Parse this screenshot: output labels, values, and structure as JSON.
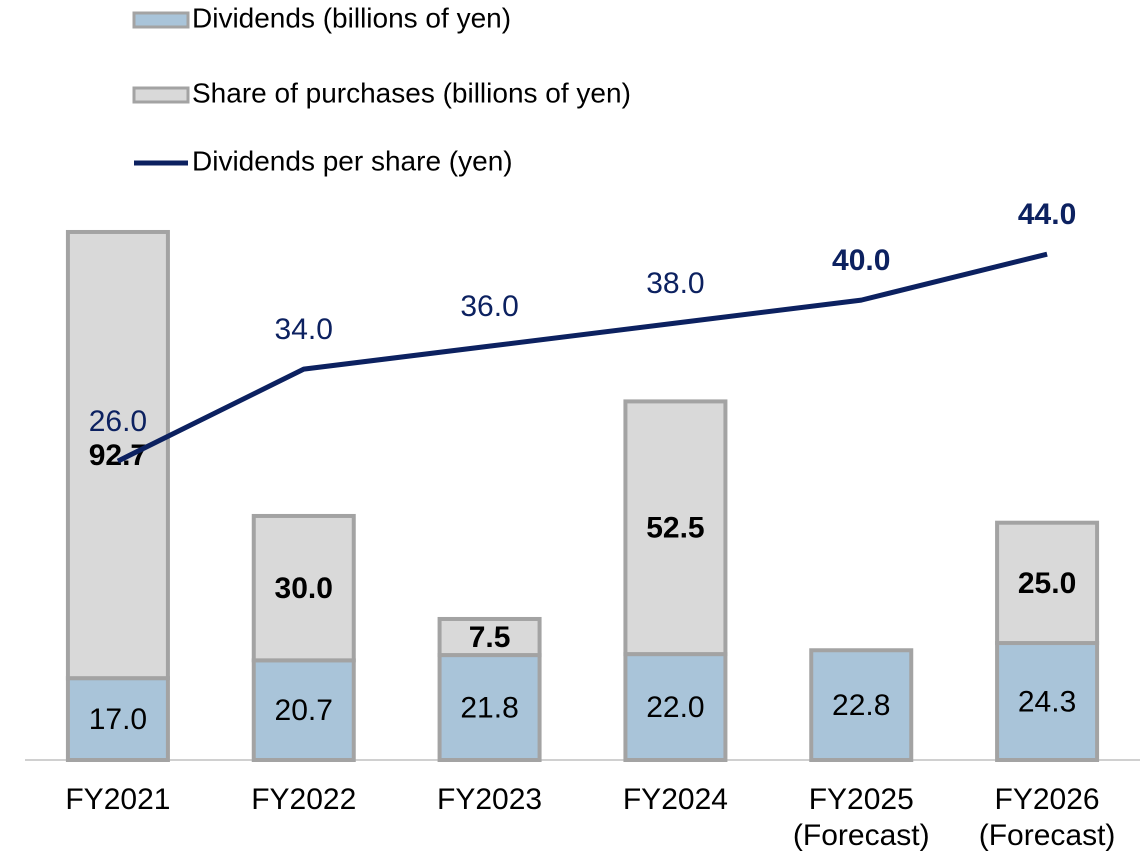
{
  "chart_data": {
    "type": "bar_line",
    "categories": [
      "FY2021",
      "FY2022",
      "FY2023",
      "FY2024",
      "FY2025\n(Forecast)",
      "FY2026\n(Forecast)"
    ],
    "series": [
      {
        "name": "Dividends (billions of yen)",
        "type": "bar",
        "color": "#a9c4d9",
        "edge_color": "#a3a3a3",
        "values": [
          17.0,
          20.7,
          21.8,
          22.0,
          22.8,
          24.3
        ],
        "value_labels": [
          "17.0",
          "20.7",
          "21.8",
          "22.0",
          "22.8",
          "24.3"
        ],
        "bold_labels": [
          false,
          false,
          false,
          false,
          false,
          false
        ]
      },
      {
        "name": "Share of purchases (billions of  yen)",
        "type": "bar",
        "color": "#d9d9d9",
        "edge_color": "#a3a3a3",
        "values": [
          92.7,
          30.0,
          7.5,
          52.5,
          null,
          25.0
        ],
        "value_labels": [
          "92.7",
          "30.0",
          "7.5",
          "52.5",
          null,
          "25.0"
        ],
        "bold_labels": [
          true,
          true,
          true,
          true,
          true,
          true
        ]
      },
      {
        "name": "Dividends per share (yen)",
        "type": "line",
        "axis": "y2",
        "color": "#0c2160",
        "values": [
          26.0,
          34.0,
          36.0,
          38.0,
          40.0,
          44.0
        ],
        "value_labels": [
          "26.0",
          "34.0",
          "36.0",
          "38.0",
          "40.0",
          "44.0"
        ],
        "bold_labels": [
          false,
          false,
          false,
          false,
          true,
          true
        ]
      }
    ],
    "ylim": [
      0,
      150
    ],
    "y2lim": [
      0,
      62.8
    ],
    "stacked": true,
    "grid": false,
    "legend": "top-left"
  }
}
